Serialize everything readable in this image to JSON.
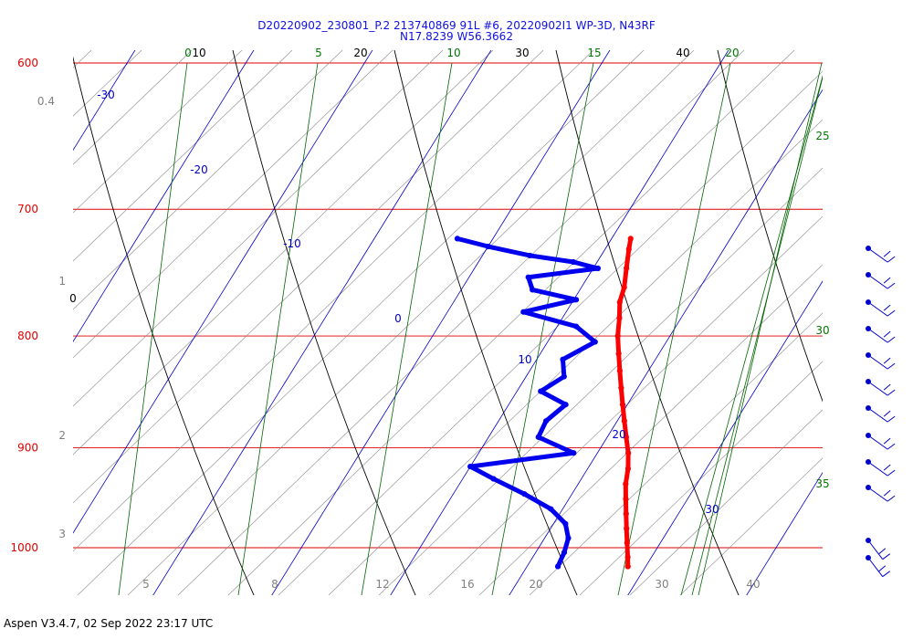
{
  "header": {
    "title_line1": "D20220902_230801_P.2 213740869 91L #6, 20220902I1 WP-3D, N43RF",
    "title_line2": "N17.8239 W56.3662"
  },
  "footer": {
    "text": "Aspen V3.4.7, 02 Sep 2022  23:17 UTC"
  },
  "chart_data": {
    "type": "skew-t",
    "pressure_levels": [
      600,
      700,
      800,
      900,
      1000
    ],
    "pressure_range": [
      1040,
      600
    ],
    "temperature_axis_labels": [
      "5",
      "8",
      "12",
      "16",
      "20",
      "30",
      "40"
    ],
    "isotherm_labels_top": [
      "0",
      "10",
      "20",
      "30",
      "40"
    ],
    "isotherm_labels_blue": [
      "-30",
      "-20",
      "-10",
      "0",
      "10",
      "20",
      "30"
    ],
    "mixing_ratio_labels": [
      "0",
      "5",
      "10",
      "15",
      "20",
      "25",
      "30",
      "35"
    ],
    "height_labels": [
      {
        "label": "0.4",
        "pressure": 628
      },
      {
        "label": "1",
        "pressure": 762
      },
      {
        "label": "0",
        "pressure": 775
      },
      {
        "label": "2",
        "pressure": 895
      },
      {
        "label": "3",
        "pressure": 990
      }
    ],
    "series": [
      {
        "color": "#ff0000",
        "kind": "temperature",
        "points": [
          [
            722,
            11.6
          ],
          [
            730,
            12.0
          ],
          [
            745,
            12.8
          ],
          [
            760,
            13.6
          ],
          [
            772,
            14.0
          ],
          [
            785,
            14.8
          ],
          [
            800,
            15.6
          ],
          [
            815,
            16.6
          ],
          [
            830,
            17.6
          ],
          [
            845,
            18.6
          ],
          [
            860,
            19.6
          ],
          [
            875,
            20.6
          ],
          [
            890,
            21.6
          ],
          [
            905,
            22.6
          ],
          [
            920,
            23.4
          ],
          [
            935,
            24.0
          ],
          [
            950,
            24.8
          ],
          [
            965,
            25.6
          ],
          [
            980,
            26.4
          ],
          [
            995,
            27.2
          ],
          [
            1010,
            28.0
          ],
          [
            1020,
            28.5
          ]
        ]
      },
      {
        "color": "#0000ee",
        "kind": "dewpoint",
        "points": [
          [
            722,
            -3.0
          ],
          [
            728,
            0.0
          ],
          [
            735,
            4.0
          ],
          [
            740,
            8.0
          ],
          [
            745,
            10.4
          ],
          [
            752,
            5.0
          ],
          [
            762,
            6.0
          ],
          [
            770,
            10.2
          ],
          [
            780,
            6.4
          ],
          [
            792,
            11.6
          ],
          [
            805,
            14.0
          ],
          [
            820,
            12.2
          ],
          [
            835,
            13.2
          ],
          [
            848,
            12.0
          ],
          [
            860,
            14.8
          ],
          [
            875,
            14.0
          ],
          [
            890,
            14.2
          ],
          [
            905,
            18.0
          ],
          [
            918,
            10.0
          ],
          [
            930,
            12.6
          ],
          [
            945,
            16.0
          ],
          [
            960,
            19.0
          ],
          [
            975,
            21.0
          ],
          [
            990,
            22.0
          ],
          [
            1005,
            22.4
          ],
          [
            1020,
            22.6
          ]
        ]
      }
    ],
    "wind_barbs_count": 12
  }
}
